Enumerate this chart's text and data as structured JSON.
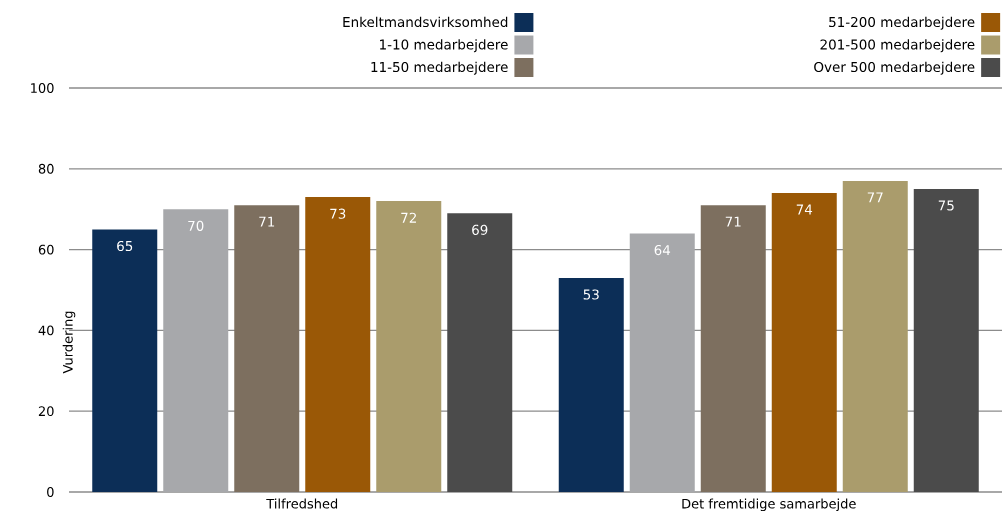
{
  "chart_data": {
    "type": "bar",
    "categories": [
      "Tilfredshed",
      "Det fremtidige samarbejde"
    ],
    "series": [
      {
        "name": "Enkeltmandsvirksomhed",
        "color": "#0c2e57",
        "values": [
          65,
          53
        ]
      },
      {
        "name": "1-10 medarbejdere",
        "color": "#a7a8ab",
        "values": [
          70,
          64
        ]
      },
      {
        "name": "11-50 medarbejdere",
        "color": "#7d6f5f",
        "values": [
          71,
          71
        ]
      },
      {
        "name": "51-200 medarbejdere",
        "color": "#9a5806",
        "values": [
          73,
          74
        ]
      },
      {
        "name": "201-500 medarbejdere",
        "color": "#aa9c6c",
        "values": [
          72,
          77
        ]
      },
      {
        "name": "Over 500 medarbejdere",
        "color": "#4b4b4b",
        "values": [
          69,
          75
        ]
      }
    ],
    "ylabel": "Vurdering",
    "ylim": [
      0,
      100
    ],
    "yticks": [
      0,
      20,
      40,
      60,
      80,
      100
    ],
    "grid": "y",
    "legend": "top right",
    "data_labels": true
  }
}
